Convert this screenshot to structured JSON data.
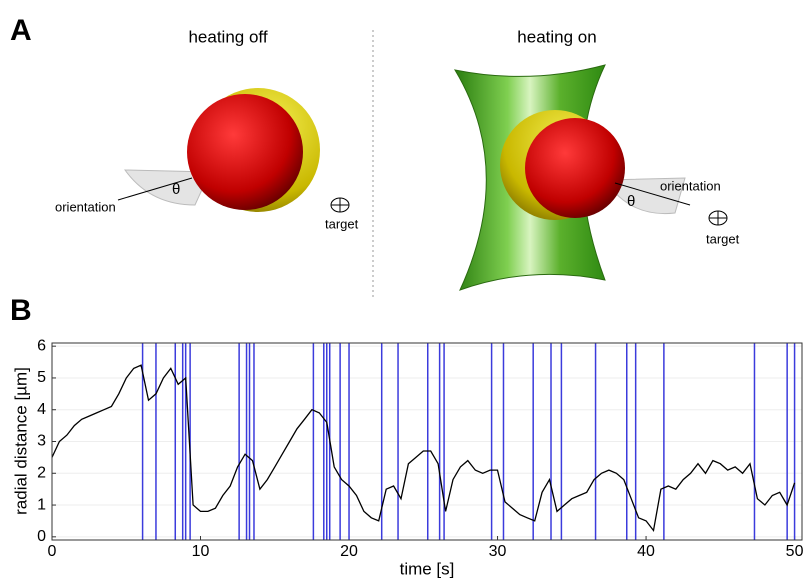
{
  "panel_labels": [
    "A",
    "B"
  ],
  "panel_a": {
    "left": {
      "title": "heating off",
      "orientation": "orientation",
      "angle": "θ",
      "target": "target"
    },
    "right": {
      "title": "heating on",
      "orientation": "orientation",
      "angle": "θ",
      "target": "target"
    }
  },
  "chart_data": {
    "type": "line",
    "xlabel": "time [s]",
    "ylabel": "radial distance [µm]",
    "xlim": [
      0,
      50.5
    ],
    "ylim": [
      -0.1,
      6.1
    ],
    "xticks": [
      0,
      10,
      20,
      30,
      40,
      50
    ],
    "yticks": [
      0,
      1,
      2,
      3,
      4,
      5,
      6
    ],
    "grid": true,
    "color": "#000000",
    "x": [
      0,
      0.5,
      1,
      1.5,
      2,
      2.5,
      3,
      3.5,
      4,
      4.5,
      5,
      5.5,
      6,
      6.5,
      7,
      7.5,
      8,
      8.5,
      9,
      9.5,
      10,
      10.5,
      11,
      11.5,
      12,
      12.5,
      13,
      13.5,
      14,
      14.5,
      15,
      15.5,
      16,
      16.5,
      17,
      17.5,
      18,
      18.5,
      19,
      19.5,
      20,
      20.5,
      21,
      21.5,
      22,
      22.5,
      23,
      23.5,
      24,
      24.5,
      25,
      25.5,
      26,
      26.5,
      27,
      27.5,
      28,
      28.5,
      29,
      29.5,
      30,
      30.5,
      31,
      31.5,
      32,
      32.5,
      33,
      33.5,
      34,
      34.5,
      35,
      35.5,
      36,
      36.5,
      37,
      37.5,
      38,
      38.5,
      39,
      39.5,
      40,
      40.5,
      41,
      41.5,
      42,
      42.5,
      43,
      43.5,
      44,
      44.5,
      45,
      45.5,
      46,
      46.5,
      47,
      47.5,
      48,
      48.5,
      49,
      49.5,
      50
    ],
    "values": [
      2.5,
      3.0,
      3.2,
      3.5,
      3.7,
      3.8,
      3.9,
      4.0,
      4.1,
      4.5,
      5.0,
      5.3,
      5.4,
      4.3,
      4.5,
      5.0,
      5.3,
      4.8,
      5.0,
      1.0,
      0.8,
      0.8,
      0.9,
      1.3,
      1.6,
      2.2,
      2.6,
      2.4,
      1.5,
      1.8,
      2.2,
      2.6,
      3.0,
      3.4,
      3.7,
      4.0,
      3.9,
      3.6,
      2.2,
      1.8,
      1.6,
      1.3,
      0.8,
      0.6,
      0.5,
      1.5,
      1.6,
      1.2,
      2.3,
      2.5,
      2.7,
      2.7,
      2.3,
      0.8,
      1.8,
      2.2,
      2.4,
      2.1,
      2.0,
      2.1,
      2.1,
      1.1,
      0.9,
      0.7,
      0.6,
      0.5,
      1.4,
      1.8,
      0.8,
      1.0,
      1.2,
      1.3,
      1.4,
      1.8,
      2.0,
      2.1,
      2.0,
      1.8,
      1.2,
      0.6,
      0.5,
      0.2,
      1.5,
      1.6,
      1.5,
      1.8,
      2.0,
      2.3,
      2.0,
      2.4,
      2.3,
      2.1,
      2.2,
      2.0,
      2.3,
      1.2,
      1.0,
      1.3,
      1.4,
      1.0,
      1.7
    ],
    "events": {
      "color": "#3b3bdc",
      "x": [
        6.1,
        7,
        8.3,
        8.8,
        9.0,
        9.3,
        12.6,
        13.1,
        13.3,
        13.6,
        17.6,
        18.3,
        18.5,
        18.7,
        19.4,
        20.0,
        22.2,
        23.3,
        25.3,
        26.1,
        26.4,
        29.6,
        30.4,
        32.4,
        33.6,
        34.3,
        36.6,
        38.7,
        39.3,
        41.2,
        47.3,
        49.5,
        50.0
      ]
    }
  }
}
